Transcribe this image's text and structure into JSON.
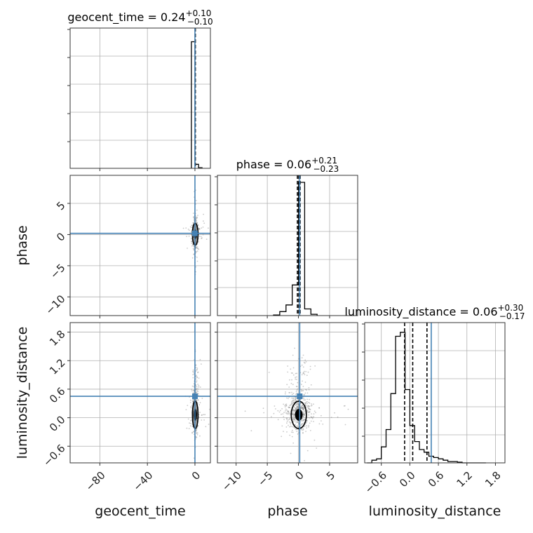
{
  "colors": {
    "truth": "#4682b4",
    "grid": "#b0b0b0",
    "hist": "#000000",
    "scatter": "#888888"
  },
  "chart_data": {
    "type": "corner",
    "parameters": [
      "geocent_time",
      "phase",
      "luminosity_distance"
    ],
    "axis_labels": {
      "geocent_time": "geocent_time",
      "phase": "phase",
      "luminosity_distance": "luminosity_distance"
    },
    "ranges": {
      "geocent_time": [
        -105,
        13
      ],
      "phase": [
        -13,
        9.5
      ],
      "luminosity_distance": [
        -0.95,
        2.0
      ]
    },
    "ticks": {
      "geocent_time": [
        -80,
        -40,
        0
      ],
      "phase": [
        -10,
        -5,
        0,
        5
      ],
      "luminosity_distance": [
        -0.6,
        0.0,
        0.6,
        1.2,
        1.8
      ]
    },
    "tick_labels": {
      "geocent_time": [
        "−80",
        "−40",
        "0"
      ],
      "phase": [
        "−10",
        "−5",
        "0",
        "5"
      ],
      "luminosity_distance": [
        "−0.6",
        "0.0",
        "0.6",
        "1.2",
        "1.8"
      ]
    },
    "truths": {
      "geocent_time": 0.0,
      "phase": 0.2,
      "luminosity_distance": 0.45
    },
    "titles": [
      {
        "param": "geocent_time",
        "text": "geocent_time = 0.24",
        "plus": "+0.10",
        "minus": "−0.10"
      },
      {
        "param": "phase",
        "text": "phase = 0.06",
        "plus": "+0.21",
        "minus": "−0.23"
      },
      {
        "param": "luminosity_distance",
        "text": "luminosity_distance = 0.06",
        "plus": "+0.30",
        "minus": "−0.17"
      }
    ],
    "quantiles": {
      "geocent_time": [
        0.14,
        0.24,
        0.34
      ],
      "phase": [
        -0.17,
        0.06,
        0.27
      ],
      "luminosity_distance": [
        -0.11,
        0.06,
        0.36
      ]
    },
    "histograms": {
      "geocent_time": {
        "edges": [
          -3,
          0,
          3,
          6
        ],
        "counts": [
          0.95,
          0.03,
          0.005
        ]
      },
      "phase": {
        "edges": [
          -4.0,
          -3.0,
          -2.0,
          -1.0,
          0.0,
          1.0,
          2.0,
          3.0
        ],
        "counts": [
          0.005,
          0.03,
          0.08,
          0.23,
          1.0,
          0.05,
          0.01
        ]
      },
      "luminosity_distance": {
        "edges": [
          -0.9,
          -0.8,
          -0.7,
          -0.6,
          -0.5,
          -0.4,
          -0.3,
          -0.2,
          -0.1,
          0.0,
          0.1,
          0.2,
          0.3,
          0.4,
          0.5,
          0.6,
          0.7,
          0.8,
          0.9,
          1.0,
          1.1,
          1.2,
          1.3,
          1.4,
          1.5,
          1.6
        ],
        "counts": [
          0.0,
          0.02,
          0.03,
          0.12,
          0.25,
          0.52,
          0.95,
          0.98,
          0.55,
          0.28,
          0.16,
          0.1,
          0.08,
          0.05,
          0.04,
          0.03,
          0.02,
          0.01,
          0.01,
          0.005,
          0.0,
          0.0,
          0.0,
          0.0,
          0.0
        ]
      }
    }
  }
}
